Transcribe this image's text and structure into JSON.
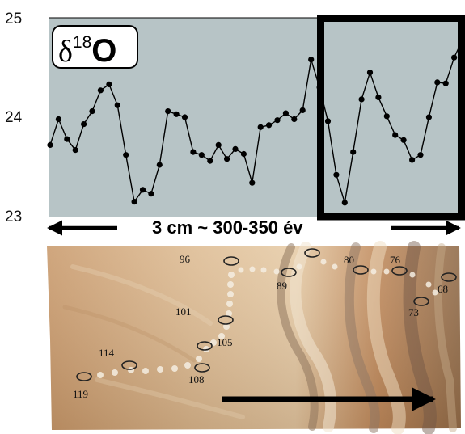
{
  "chart_data": {
    "type": "line",
    "title": "δ18O",
    "title_symbol": "δ",
    "title_superscript": "18",
    "title_element": "O",
    "xlabel": "",
    "ylabel": "",
    "ylim": [
      23,
      25
    ],
    "yticks": [
      "23",
      "24",
      "25"
    ],
    "grid": false,
    "background_color": "#b7c4c6",
    "line_color": "#000000",
    "marker_color": "#000000",
    "series": [
      {
        "values": [
          23.72,
          23.98,
          23.78,
          23.67,
          23.93,
          24.06,
          24.27,
          24.33,
          24.12,
          23.62,
          23.15,
          23.27,
          23.23,
          23.52,
          24.06,
          24.03,
          24.0,
          23.65,
          23.62,
          23.56,
          23.72,
          23.58,
          23.68,
          23.63,
          23.34,
          23.9,
          23.92,
          23.97,
          24.04,
          23.98,
          24.07,
          24.58,
          24.3,
          23.96,
          23.42,
          23.14,
          23.65,
          24.18,
          24.45,
          24.2,
          24.01,
          23.82,
          23.77,
          23.57,
          23.62,
          24.0,
          24.35,
          24.34,
          24.6,
          24.78
        ]
      }
    ],
    "highlight_box": {
      "start_index": 33,
      "end_index": 49,
      "color": "#000000"
    },
    "span_label": "3 cm ~ 300-350 év",
    "arrow_color": "#000000"
  },
  "specimen": {
    "sample_labels": [
      "96",
      "89",
      "80",
      "76",
      "68",
      "73",
      "101",
      "105",
      "114",
      "108",
      "119"
    ],
    "direction_arrow_color": "#000000"
  }
}
